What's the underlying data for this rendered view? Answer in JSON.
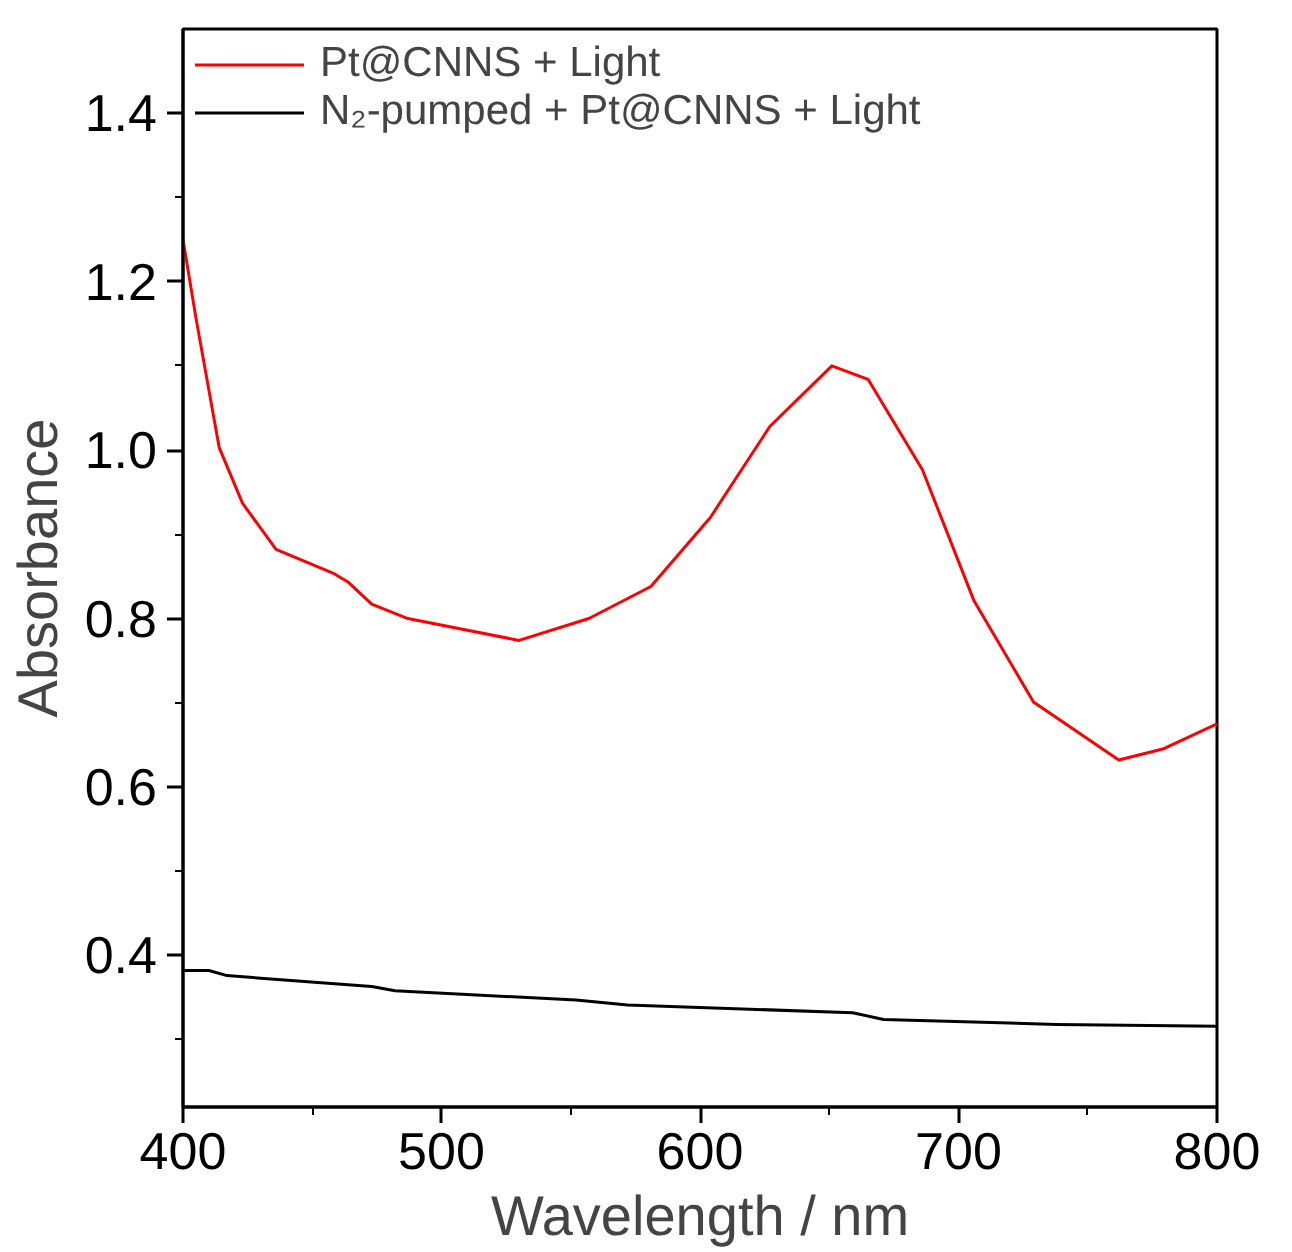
{
  "chart_data": {
    "type": "line",
    "xlabel": "Wavelength / nm",
    "ylabel": "Absorbance",
    "xlim": [
      400,
      800
    ],
    "xticks": [
      400,
      {
        "value": 450,
        "label": null
      },
      500,
      {
        "value": 550,
        "label": null
      },
      600,
      {
        "value": 650,
        "label": null
      },
      700,
      {
        "value": 750,
        "label": null
      },
      800
    ],
    "ylim": [
      0.22,
      1.5
    ],
    "yticks": [
      {
        "value": 0.3,
        "label": null
      },
      {
        "value": 0.4,
        "label": "0.4"
      },
      {
        "value": 0.5,
        "label": null
      },
      {
        "value": 0.6,
        "label": "0.6"
      },
      {
        "value": 0.7,
        "label": null
      },
      {
        "value": 0.8,
        "label": "0.8"
      },
      {
        "value": 0.9,
        "label": null
      },
      {
        "value": 1.0,
        "label": "1.0"
      },
      {
        "value": 1.1,
        "label": null
      },
      {
        "value": 1.2,
        "label": "1.2"
      },
      {
        "value": 1.3,
        "label": null
      },
      {
        "value": 1.4,
        "label": "1.4"
      }
    ],
    "grid": false,
    "legend": "top left",
    "line_style": "solid",
    "marker": "none",
    "series": [
      {
        "name": "Pt@CNNS + Light",
        "color": "#ff0000",
        "x": [
          400,
          405,
          414,
          423,
          436,
          458,
          464,
          473,
          487,
          530,
          557,
          581,
          604,
          627,
          651,
          665,
          686,
          706,
          729,
          762,
          779,
          800
        ],
        "values": [
          1.25,
          1.157,
          1.003,
          0.937,
          0.882,
          0.854,
          0.843,
          0.817,
          0.8,
          0.774,
          0.8,
          0.838,
          0.92,
          1.028,
          1.1,
          1.084,
          0.977,
          0.821,
          0.701,
          0.632,
          0.645,
          0.675
        ]
      },
      {
        "name": "N₂-pumped + Pt@CNNS + Light",
        "color": "#000000",
        "x": [
          400,
          410,
          417,
          473,
          482,
          552,
          572,
          659,
          671,
          738,
          800
        ],
        "values": [
          0.382,
          0.382,
          0.376,
          0.363,
          0.358,
          0.347,
          0.341,
          0.332,
          0.324,
          0.318,
          0.316
        ]
      }
    ]
  }
}
